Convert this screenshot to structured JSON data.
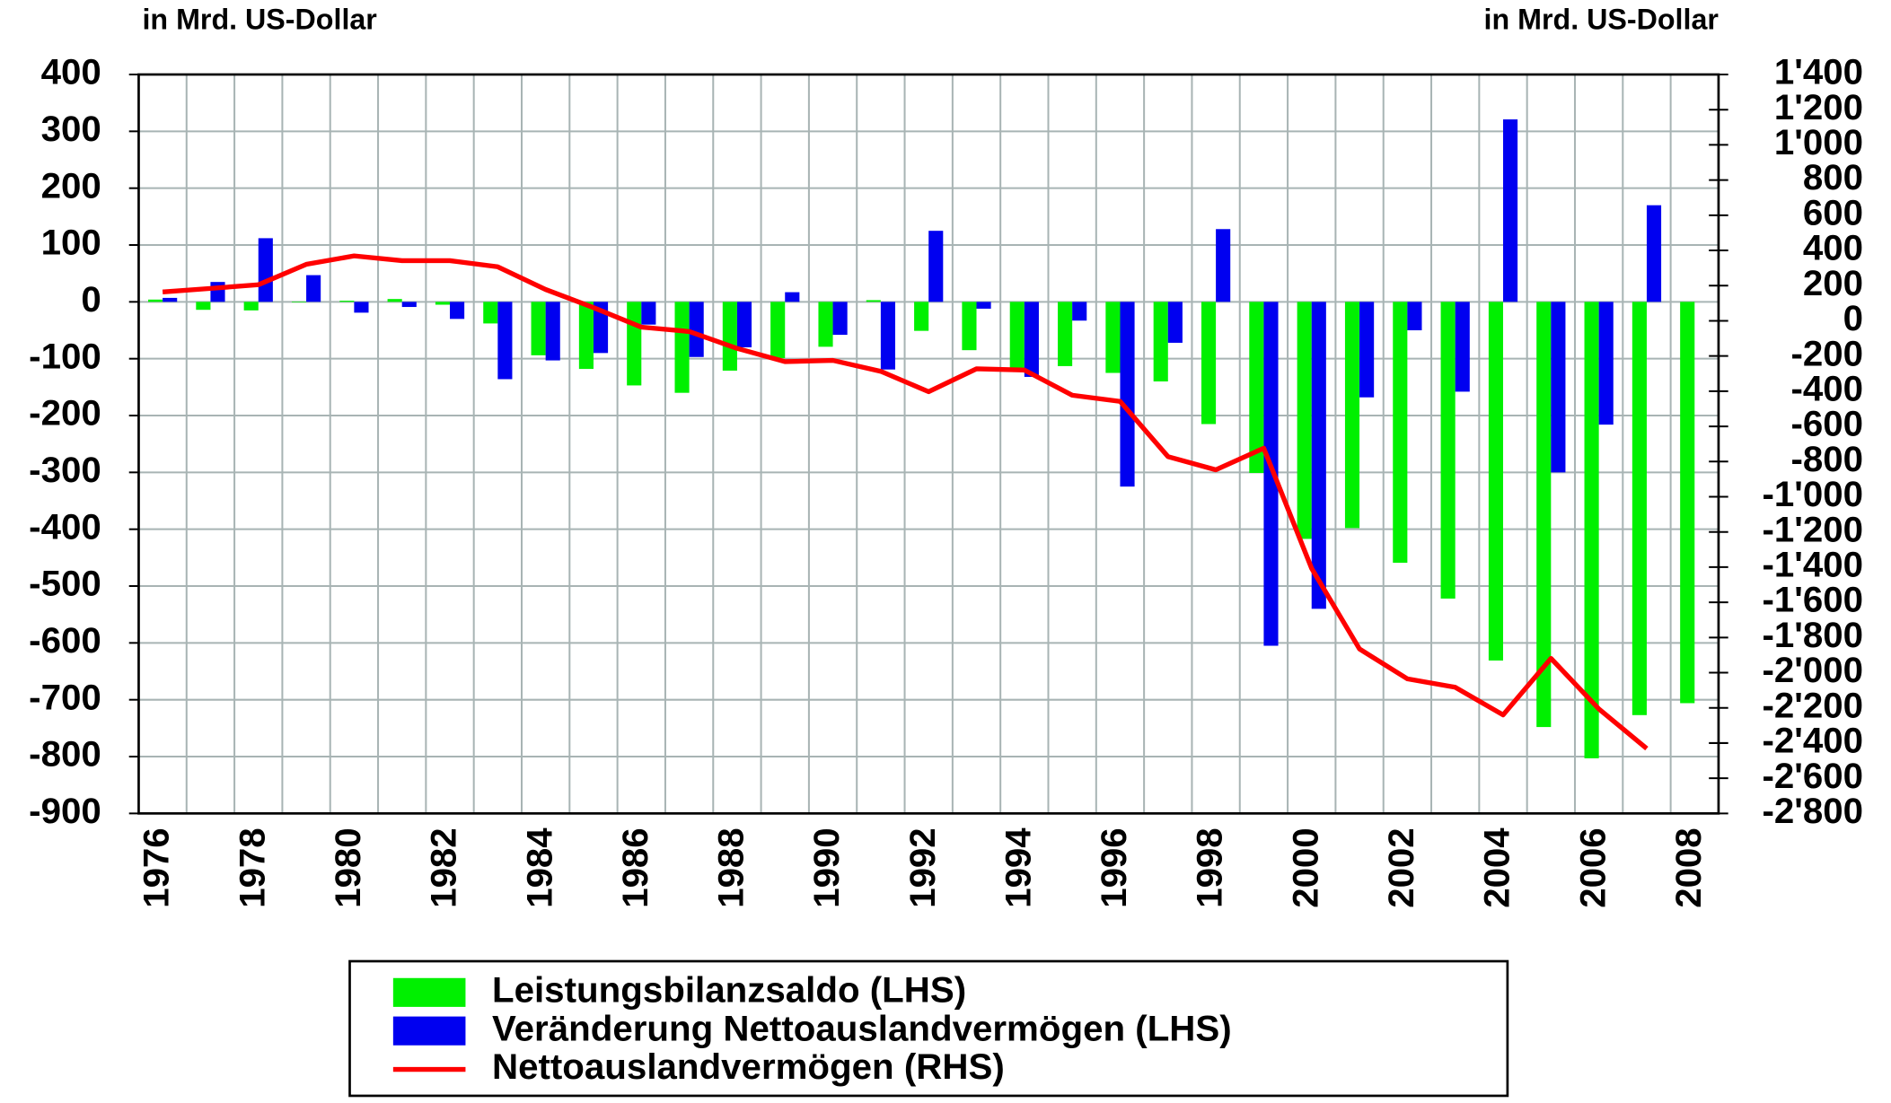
{
  "chart_data": {
    "type": "bar",
    "y_label": "in Mrd. US-Dollar",
    "y2_label": "in Mrd. US-Dollar",
    "categories": [
      "1976",
      null,
      "1978",
      null,
      "1980",
      null,
      "1982",
      null,
      "1984",
      null,
      "1986",
      null,
      "1988",
      null,
      "1990",
      null,
      "1992",
      null,
      "1994",
      null,
      "1996",
      null,
      "1998",
      null,
      "2000",
      null,
      "2002",
      null,
      "2004",
      null,
      "2006",
      null,
      "2008"
    ],
    "series": [
      {
        "name": "Leistungsbilanzsaldo (LHS)",
        "type": "bar",
        "color": "#00f000",
        "values": [
          4,
          -14,
          -15,
          0,
          2,
          5,
          -5,
          -38,
          -94,
          -118,
          -147,
          -160,
          -121,
          -99,
          -79,
          3,
          -51,
          -85,
          -122,
          -113,
          -125,
          -140,
          -215,
          -301,
          -417,
          -398,
          -459,
          -522,
          -631,
          -748,
          -803,
          -727,
          -706
        ]
      },
      {
        "name": "Veränderung Nettoauslandvermögen (LHS)",
        "type": "bar",
        "color": "#0000f0",
        "values": [
          7,
          35,
          112,
          47,
          -19,
          -9,
          -30,
          -136,
          -103,
          -90,
          -40,
          -97,
          -80,
          17,
          -58,
          -119,
          125,
          -12,
          -132,
          -33,
          -325,
          -72,
          128,
          -605,
          -540,
          -168,
          -50,
          -158,
          321,
          -300,
          -216,
          170,
          null
        ]
      },
      {
        "name": "Nettoauslandvermögen (RHS)",
        "type": "line",
        "axis": "y2",
        "color": "#ff0000",
        "values": [
          164,
          184,
          205,
          321,
          369,
          342,
          342,
          307,
          178,
          75,
          -36,
          -61,
          -157,
          -232,
          -225,
          -287,
          -403,
          -273,
          -280,
          -423,
          -458,
          -772,
          -847,
          -724,
          -1407,
          -1865,
          -2035,
          -2083,
          -2240,
          -1919,
          -2206,
          -2431,
          null
        ]
      }
    ],
    "ylim": [
      -900,
      400
    ],
    "yticks": [
      400,
      300,
      200,
      100,
      0,
      -100,
      -200,
      -300,
      -400,
      -500,
      -600,
      -700,
      -800,
      -900
    ],
    "y2lim": [
      -2800,
      1400
    ],
    "y2ticks": [
      {
        "value": 1400,
        "label": "1'400"
      },
      {
        "value": 1200,
        "label": "1'200"
      },
      {
        "value": 1000,
        "label": "1'000"
      },
      800,
      600,
      400,
      200,
      0,
      -200,
      -400,
      -600,
      -800,
      {
        "value": -1000,
        "label": "-1'000"
      },
      {
        "value": -1200,
        "label": "-1'200"
      },
      {
        "value": -1400,
        "label": "-1'400"
      },
      {
        "value": -1600,
        "label": "-1'600"
      },
      {
        "value": -1800,
        "label": "-1'800"
      },
      {
        "value": -2000,
        "label": "-2'000"
      },
      {
        "value": -2200,
        "label": "-2'200"
      },
      {
        "value": -2400,
        "label": "-2'400"
      },
      {
        "value": -2600,
        "label": "-2'600"
      },
      {
        "value": -2800,
        "label": "-2'800"
      }
    ],
    "grid": true,
    "legend": "bottom"
  }
}
